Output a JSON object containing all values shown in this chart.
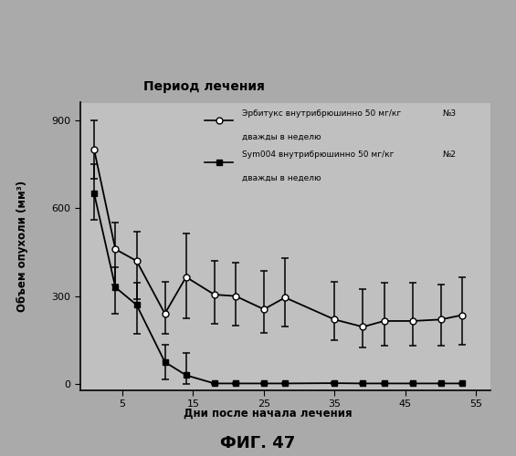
{
  "title": "Период лечения",
  "xlabel": "Дни после начала лечения",
  "ylabel": "Объем опухоли (мм³)",
  "fig_caption": "ФИГ. 47",
  "xlim": [
    -1,
    57
  ],
  "ylim": [
    -20,
    960
  ],
  "yticks": [
    0,
    300,
    600,
    900
  ],
  "xticks": [
    5,
    15,
    25,
    35,
    45,
    55
  ],
  "series1_label1": "Эрбитукс внутрибрюшинно 50 мг/кг",
  "series1_label2": "дважды в неделю",
  "series1_n": "№3",
  "series2_label1": "Sym004 внутрибрюшинно 50 мг/кг",
  "series2_label2": "дважды в неделю",
  "series2_n": "№2",
  "series1_x": [
    1,
    4,
    7,
    11,
    14,
    18,
    21,
    25,
    28,
    35,
    39,
    42,
    46,
    50,
    53
  ],
  "series1_y": [
    800,
    460,
    420,
    240,
    365,
    305,
    300,
    255,
    295,
    220,
    195,
    215,
    215,
    220,
    235
  ],
  "series1_yerr_low": [
    100,
    120,
    130,
    70,
    140,
    100,
    100,
    80,
    100,
    70,
    70,
    85,
    85,
    90,
    100
  ],
  "series1_yerr_high": [
    100,
    90,
    100,
    110,
    150,
    115,
    115,
    130,
    135,
    130,
    130,
    130,
    130,
    120,
    130
  ],
  "series2_x": [
    1,
    4,
    7,
    11,
    14,
    18,
    21,
    25,
    28,
    35,
    39,
    42,
    46,
    50,
    53
  ],
  "series2_y": [
    650,
    330,
    270,
    75,
    30,
    2,
    2,
    2,
    2,
    3,
    2,
    2,
    2,
    2,
    2
  ],
  "series2_yerr_low": [
    90,
    90,
    100,
    60,
    30,
    2,
    2,
    2,
    2,
    3,
    2,
    2,
    2,
    2,
    2
  ],
  "series2_yerr_high": [
    100,
    70,
    75,
    60,
    75,
    2,
    2,
    2,
    2,
    3,
    2,
    2,
    2,
    2,
    2
  ],
  "bg_hatch_color": "#888888",
  "plot_bg_color": "#c8c8c8",
  "hatch_bg_color": "#999999"
}
